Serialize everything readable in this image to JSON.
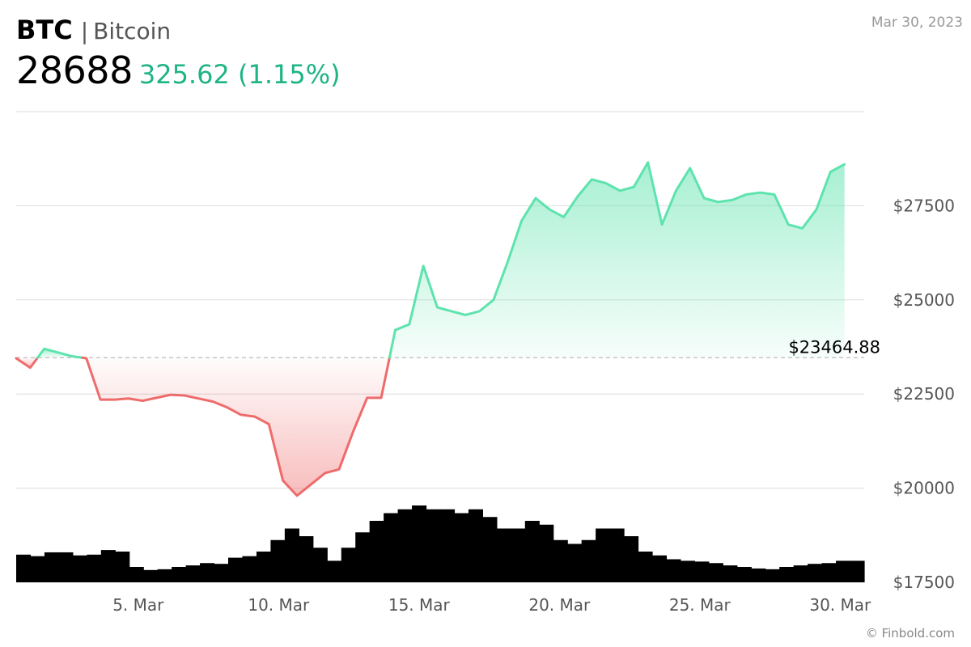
{
  "header": {
    "symbol": "BTC",
    "separator": "|",
    "name": "Bitcoin",
    "price": "28688",
    "change": "325.62 (1.15%)",
    "date": "Mar 30, 2023"
  },
  "credit": "© Finbold.com",
  "colors": {
    "up_line": "#5ee3ae",
    "down_line": "#ef6b6b",
    "volume": "#000000",
    "grid": "#dddddd",
    "change_text": "#1fb486"
  },
  "chart_data": {
    "type": "line",
    "title": "",
    "xlabel": "",
    "ylabel": "",
    "x_ticks": [
      "5. Mar",
      "10. Mar",
      "15. Mar",
      "20. Mar",
      "25. Mar",
      "30. Mar"
    ],
    "y_ticks": [
      "$17500",
      "$20000",
      "$22500",
      "$25000",
      "$27500"
    ],
    "ylim": [
      17500,
      30000
    ],
    "reference_value": 23464.88,
    "reference_label": "$23464.88",
    "grid": true,
    "fill": "gradient above/below reference line",
    "series": [
      {
        "x": [
          "Mar 1",
          "Mar 1.5",
          "Mar 2",
          "Mar 2.5",
          "Mar 3",
          "Mar 3.5",
          "Mar 4",
          "Mar 4.5",
          "Mar 5",
          "Mar 5.5",
          "Mar 6",
          "Mar 6.5",
          "Mar 7",
          "Mar 7.5",
          "Mar 8",
          "Mar 8.5",
          "Mar 9",
          "Mar 9.5",
          "Mar 10",
          "Mar 10.5",
          "Mar 11",
          "Mar 11.5",
          "Mar 12",
          "Mar 12.5",
          "Mar 13",
          "Mar 13.5",
          "Mar 14",
          "Mar 14.5",
          "Mar 15",
          "Mar 15.5",
          "Mar 16",
          "Mar 16.5",
          "Mar 17",
          "Mar 17.5",
          "Mar 18",
          "Mar 18.5",
          "Mar 19",
          "Mar 19.5",
          "Mar 20",
          "Mar 20.5",
          "Mar 21",
          "Mar 21.5",
          "Mar 22",
          "Mar 22.5",
          "Mar 23",
          "Mar 23.5",
          "Mar 24",
          "Mar 24.5",
          "Mar 25",
          "Mar 25.5",
          "Mar 26",
          "Mar 26.5",
          "Mar 27",
          "Mar 27.5",
          "Mar 28",
          "Mar 28.5",
          "Mar 29",
          "Mar 29.5",
          "Mar 30",
          "Mar 30.5"
        ],
        "values": [
          23450,
          23200,
          23700,
          23600,
          23500,
          23450,
          22350,
          22350,
          22380,
          22320,
          22400,
          22480,
          22460,
          22380,
          22300,
          22150,
          21950,
          21900,
          21700,
          20200,
          19800,
          20100,
          20400,
          20500,
          21500,
          22400,
          22400,
          24200,
          24350,
          25900,
          24800,
          24700,
          24600,
          24700,
          25000,
          26000,
          27100,
          27700,
          27400,
          27200,
          27750,
          28200,
          28100,
          27900,
          28000,
          28650,
          27000,
          27900,
          28500,
          27700,
          27600,
          27650,
          27800,
          27850,
          27800,
          27000,
          26900,
          27400,
          28400,
          28600
        ],
        "volume": [
          0.36,
          0.34,
          0.39,
          0.39,
          0.35,
          0.36,
          0.42,
          0.4,
          0.2,
          0.16,
          0.17,
          0.2,
          0.22,
          0.25,
          0.24,
          0.32,
          0.34,
          0.4,
          0.55,
          0.7,
          0.6,
          0.45,
          0.28,
          0.45,
          0.65,
          0.8,
          0.9,
          0.95,
          1.0,
          0.95,
          0.95,
          0.9,
          0.95,
          0.85,
          0.7,
          0.7,
          0.8,
          0.75,
          0.55,
          0.5,
          0.55,
          0.7,
          0.7,
          0.6,
          0.4,
          0.35,
          0.3,
          0.28,
          0.27,
          0.25,
          0.22,
          0.2,
          0.18,
          0.17,
          0.2,
          0.22,
          0.24,
          0.25,
          0.28,
          0.28
        ]
      }
    ]
  }
}
